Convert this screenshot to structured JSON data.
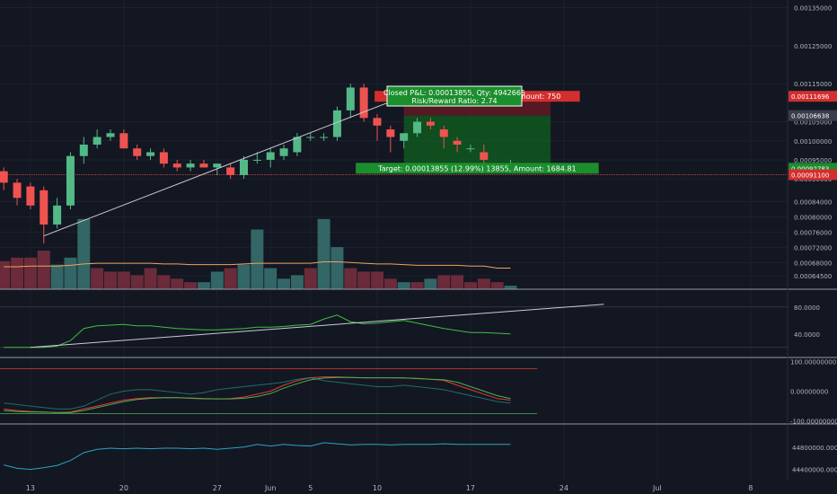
{
  "theme": {
    "background": "#131722",
    "grid": "#1c2030",
    "axis_text": "#b2b5be",
    "up": "#26a69a",
    "up_bright": "#53b987",
    "down": "#ef5350",
    "volume_up": "#336666",
    "volume_down": "#6b2b3a",
    "volume_ma": "#f0a35a",
    "trendline": "#c9cbd6",
    "position_target": "#0f7a1e",
    "position_stop": "#8a1c24",
    "rsi_line": "#3fbf3f",
    "osc_red": "#e53935",
    "osc_green": "#4caf50",
    "osc_teal": "#26a69a",
    "bottom_line": "#2ba3c4"
  },
  "chart_data": [
    {
      "type": "candlestick",
      "panel": "price",
      "y_scale": "linear",
      "ylim": [
        0.00061,
        0.00137
      ],
      "x_ticks": [
        {
          "label": "13",
          "index": 2
        },
        {
          "label": "20",
          "index": 9
        },
        {
          "label": "27",
          "index": 16
        },
        {
          "label": "Jun",
          "index": 20
        },
        {
          "label": "5",
          "index": 23
        },
        {
          "label": "10",
          "index": 28
        },
        {
          "label": "17",
          "index": 35
        },
        {
          "label": "24",
          "index": 42
        },
        {
          "label": "Jul",
          "index": 49
        },
        {
          "label": "8",
          "index": 56
        }
      ],
      "y_ticks": [
        0.00135,
        0.00125,
        0.00115,
        0.00105,
        0.001,
        0.00095,
        0.0009,
        0.00084,
        0.0008,
        0.00076,
        0.00072,
        0.00068,
        0.000645
      ],
      "y_tick_labels": [
        "0.00135000",
        "0.00125000",
        "0.00115000",
        "0.00105000",
        "0.00100000",
        "0.00095000",
        "0.00090000",
        "0.00084000",
        "0.00080000",
        "0.00076000",
        "0.00072000",
        "0.00068000",
        "0.00064500"
      ],
      "price_tags": [
        {
          "label": "0.00111696",
          "value": 0.00111696,
          "color": "#d32f2f"
        },
        {
          "label": "0.00106638",
          "value": 0.00106638,
          "color": "#3a3e4a"
        },
        {
          "label": "0.00092783",
          "value": 0.00092783,
          "color": "#1b8e2d"
        },
        {
          "label": "0.00091100",
          "value": 0.000911,
          "color": "#d32f2f"
        }
      ],
      "candles": [
        {
          "o": 0.00092,
          "h": 0.00093,
          "l": 0.00087,
          "c": 0.00089
        },
        {
          "o": 0.00089,
          "h": 0.0009,
          "l": 0.00083,
          "c": 0.00085
        },
        {
          "o": 0.00088,
          "h": 0.00089,
          "l": 0.00082,
          "c": 0.00083
        },
        {
          "o": 0.00087,
          "h": 0.00088,
          "l": 0.00073,
          "c": 0.00078
        },
        {
          "o": 0.00078,
          "h": 0.00085,
          "l": 0.00077,
          "c": 0.00083
        },
        {
          "o": 0.00083,
          "h": 0.00097,
          "l": 0.00082,
          "c": 0.00096
        },
        {
          "o": 0.00096,
          "h": 0.00101,
          "l": 0.00094,
          "c": 0.00099
        },
        {
          "o": 0.00099,
          "h": 0.00103,
          "l": 0.00098,
          "c": 0.00101
        },
        {
          "o": 0.00101,
          "h": 0.00103,
          "l": 0.001,
          "c": 0.00102
        },
        {
          "o": 0.00102,
          "h": 0.00103,
          "l": 0.00098,
          "c": 0.00098
        },
        {
          "o": 0.00098,
          "h": 0.00099,
          "l": 0.00095,
          "c": 0.00096
        },
        {
          "o": 0.00096,
          "h": 0.00098,
          "l": 0.00095,
          "c": 0.00097
        },
        {
          "o": 0.00097,
          "h": 0.00098,
          "l": 0.00093,
          "c": 0.00094
        },
        {
          "o": 0.00094,
          "h": 0.00095,
          "l": 0.00092,
          "c": 0.00093
        },
        {
          "o": 0.00093,
          "h": 0.00095,
          "l": 0.00092,
          "c": 0.00094
        },
        {
          "o": 0.00094,
          "h": 0.00095,
          "l": 0.00093,
          "c": 0.00093
        },
        {
          "o": 0.00093,
          "h": 0.00094,
          "l": 0.00091,
          "c": 0.00094
        },
        {
          "o": 0.00093,
          "h": 0.00094,
          "l": 0.0009,
          "c": 0.00091
        },
        {
          "o": 0.00091,
          "h": 0.00096,
          "l": 0.0009,
          "c": 0.00095
        },
        {
          "o": 0.00095,
          "h": 0.00097,
          "l": 0.00094,
          "c": 0.00095
        },
        {
          "o": 0.00095,
          "h": 0.00098,
          "l": 0.00093,
          "c": 0.00097
        },
        {
          "o": 0.00096,
          "h": 0.00099,
          "l": 0.00095,
          "c": 0.00098
        },
        {
          "o": 0.00097,
          "h": 0.00102,
          "l": 0.00096,
          "c": 0.00101
        },
        {
          "o": 0.00101,
          "h": 0.00102,
          "l": 0.001,
          "c": 0.00101
        },
        {
          "o": 0.00101,
          "h": 0.00102,
          "l": 0.001,
          "c": 0.00101
        },
        {
          "o": 0.00101,
          "h": 0.00109,
          "l": 0.001,
          "c": 0.00108
        },
        {
          "o": 0.00108,
          "h": 0.00115,
          "l": 0.00106,
          "c": 0.00114
        },
        {
          "o": 0.00114,
          "h": 0.00115,
          "l": 0.00105,
          "c": 0.00106
        },
        {
          "o": 0.00106,
          "h": 0.00107,
          "l": 0.001,
          "c": 0.00104
        },
        {
          "o": 0.00103,
          "h": 0.00104,
          "l": 0.00097,
          "c": 0.00101
        },
        {
          "o": 0.001,
          "h": 0.00102,
          "l": 0.00098,
          "c": 0.00102
        },
        {
          "o": 0.00102,
          "h": 0.00106,
          "l": 0.00101,
          "c": 0.00105
        },
        {
          "o": 0.00105,
          "h": 0.00106,
          "l": 0.00103,
          "c": 0.00104
        },
        {
          "o": 0.00103,
          "h": 0.00104,
          "l": 0.00098,
          "c": 0.00101
        },
        {
          "o": 0.001,
          "h": 0.00101,
          "l": 0.00097,
          "c": 0.00099
        },
        {
          "o": 0.00098,
          "h": 0.00099,
          "l": 0.00097,
          "c": 0.00098
        },
        {
          "o": 0.00097,
          "h": 0.00099,
          "l": 0.00094,
          "c": 0.00095
        },
        {
          "o": 0.00093,
          "h": 0.00094,
          "l": 0.00092,
          "c": 0.00093
        },
        {
          "o": 0.00093,
          "h": 0.00095,
          "l": 0.00092,
          "c": 0.00093
        }
      ],
      "trendline": {
        "from": [
          3,
          0.00075
        ],
        "to": [
          31,
          0.00113
        ]
      },
      "horizontal_line": 0.000911,
      "position": {
        "from_index": 30,
        "to_index": 41,
        "entry": 0.00106638,
        "stop": 0.00111696,
        "target": 0.00092783,
        "stop_label": "Stop: 0.00005058 (4.74%) 5058, Amount: 750",
        "target_label": "Target: 0.00013855 (12.99%) 13855, Amount: 1684.81",
        "pnl_label": "Closed P&L: 0.00013855, Qty: 4942665",
        "ratio_label": "Risk/Reward Ratio: 2.74"
      }
    },
    {
      "type": "bar",
      "panel": "volume",
      "values": [
        0.4,
        0.45,
        0.45,
        0.55,
        0.35,
        0.45,
        1.0,
        0.3,
        0.25,
        0.25,
        0.2,
        0.3,
        0.2,
        0.15,
        0.1,
        0.1,
        0.25,
        0.3,
        0.35,
        0.85,
        0.3,
        0.15,
        0.2,
        0.3,
        1.0,
        0.6,
        0.3,
        0.25,
        0.25,
        0.15,
        0.1,
        0.1,
        0.15,
        0.2,
        0.2,
        0.1,
        0.15,
        0.1,
        0.05
      ],
      "direction": [
        "d",
        "d",
        "d",
        "d",
        "u",
        "u",
        "u",
        "d",
        "d",
        "d",
        "d",
        "d",
        "d",
        "d",
        "d",
        "u",
        "u",
        "d",
        "u",
        "u",
        "u",
        "u",
        "u",
        "d",
        "u",
        "u",
        "d",
        "d",
        "d",
        "d",
        "u",
        "d",
        "u",
        "d",
        "d",
        "d",
        "d",
        "d",
        "u"
      ],
      "ma": [
        0.32,
        0.32,
        0.33,
        0.33,
        0.33,
        0.34,
        0.36,
        0.37,
        0.37,
        0.37,
        0.37,
        0.37,
        0.36,
        0.36,
        0.35,
        0.35,
        0.35,
        0.35,
        0.36,
        0.37,
        0.37,
        0.37,
        0.37,
        0.37,
        0.39,
        0.39,
        0.38,
        0.37,
        0.36,
        0.36,
        0.35,
        0.34,
        0.34,
        0.34,
        0.34,
        0.33,
        0.33,
        0.3,
        0.3
      ],
      "ylim": [
        0,
        1.1
      ]
    },
    {
      "type": "line",
      "panel": "rsi",
      "ylim": [
        5,
        105
      ],
      "y_ticks": [
        80,
        40
      ],
      "y_tick_labels": [
        "80.0000",
        "40.0000"
      ],
      "levels": [
        80,
        20
      ],
      "values": [
        20,
        20,
        20,
        20,
        22,
        30,
        48,
        52,
        53,
        54,
        52,
        52,
        50,
        48,
        47,
        46,
        46,
        47,
        48,
        50,
        50,
        51,
        53,
        54,
        62,
        68,
        58,
        55,
        56,
        58,
        60,
        56,
        52,
        48,
        45,
        42,
        42,
        41,
        40
      ],
      "trendline": {
        "from": [
          2,
          20
        ],
        "to": [
          45,
          84
        ]
      }
    },
    {
      "type": "line",
      "panel": "oscillator",
      "ylim": [
        -110,
        110
      ],
      "y_ticks": [
        100,
        0,
        -100
      ],
      "y_tick_labels": [
        "100.00000000",
        "0.00000000",
        "-100.00000000"
      ],
      "levels": [
        75,
        -75
      ],
      "series": [
        {
          "values": [
            -60,
            -65,
            -68,
            -70,
            -72,
            -70,
            -60,
            -50,
            -40,
            -30,
            -25,
            -22,
            -22,
            -22,
            -24,
            -26,
            -26,
            -25,
            -20,
            -10,
            0,
            20,
            35,
            45,
            48,
            48,
            46,
            45,
            45,
            45,
            45,
            42,
            40,
            36,
            20,
            5,
            -10,
            -25,
            -30
          ]
        },
        {
          "values": [
            -65,
            -68,
            -70,
            -70,
            -72,
            -72,
            -65,
            -55,
            -45,
            -35,
            -28,
            -24,
            -22,
            -22,
            -23,
            -25,
            -26,
            -26,
            -24,
            -18,
            -8,
            10,
            25,
            38,
            44,
            46,
            46,
            45,
            45,
            45,
            44,
            43,
            40,
            38,
            30,
            15,
            0,
            -15,
            -25
          ]
        },
        {
          "values": [
            -40,
            -45,
            -50,
            -55,
            -60,
            -60,
            -50,
            -30,
            -10,
            0,
            5,
            5,
            0,
            -5,
            -10,
            -5,
            5,
            10,
            15,
            20,
            25,
            30,
            40,
            45,
            35,
            30,
            25,
            20,
            15,
            15,
            20,
            15,
            10,
            5,
            -5,
            -15,
            -25,
            -35,
            -40
          ]
        }
      ]
    },
    {
      "type": "line",
      "panel": "bottom",
      "ylim": [
        44200000,
        45200000
      ],
      "y_ticks": [
        44800000,
        44400000
      ],
      "y_tick_labels": [
        "44800000.0000",
        "44400000.0000"
      ],
      "values": [
        44480000,
        44420000,
        44400000,
        44430000,
        44470000,
        44560000,
        44700000,
        44760000,
        44780000,
        44770000,
        44780000,
        44770000,
        44780000,
        44780000,
        44770000,
        44780000,
        44760000,
        44780000,
        44800000,
        44850000,
        44820000,
        44850000,
        44830000,
        44820000,
        44880000,
        44860000,
        44840000,
        44850000,
        44850000,
        44840000,
        44850000,
        44850000,
        44850000,
        44860000,
        44850000,
        44850000,
        44850000,
        44850000,
        44850000
      ]
    }
  ]
}
